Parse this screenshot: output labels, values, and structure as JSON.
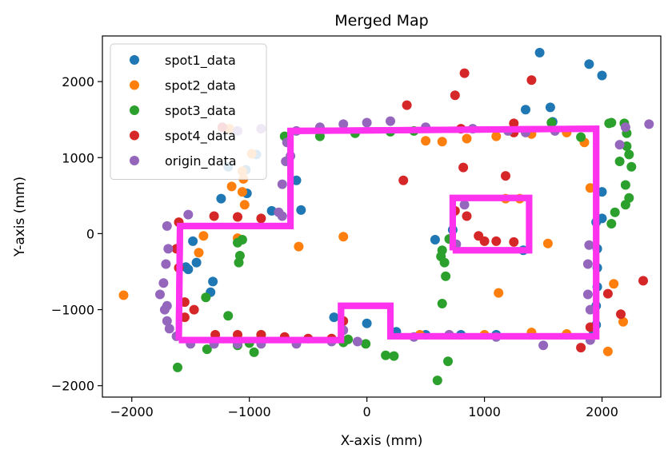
{
  "chart_data": {
    "type": "scatter",
    "title": "Merged Map",
    "xlabel": "X-axis (mm)",
    "ylabel": "Y-axis (mm)",
    "xlim": [
      -2250,
      2500
    ],
    "ylim": [
      -2150,
      2600
    ],
    "xticks": [
      -2000,
      -1000,
      0,
      1000,
      2000
    ],
    "yticks": [
      -2000,
      -1000,
      0,
      1000,
      2000
    ],
    "xtick_labels": [
      "−2000",
      "−1000",
      "0",
      "1000",
      "2000"
    ],
    "ytick_labels": [
      "−2000",
      "−1000",
      "0",
      "1000",
      "2000"
    ],
    "grid": false,
    "legend_position": "top-left",
    "series": [
      {
        "name": "spot1_data",
        "color": "#1f77b4",
        "points": [
          [
            1470,
            2380
          ],
          [
            1890,
            2230
          ],
          [
            2000,
            2080
          ],
          [
            1350,
            1630
          ],
          [
            1560,
            1660
          ],
          [
            1580,
            1470
          ],
          [
            -940,
            1040
          ],
          [
            -1180,
            880
          ],
          [
            -1030,
            840
          ],
          [
            -1020,
            530
          ],
          [
            -1240,
            460
          ],
          [
            -810,
            300
          ],
          [
            -600,
            700
          ],
          [
            -560,
            310
          ],
          [
            -1540,
            -440
          ],
          [
            -1520,
            -470
          ],
          [
            -1310,
            -630
          ],
          [
            -1330,
            -770
          ],
          [
            1950,
            150
          ],
          [
            1960,
            -200
          ],
          [
            1960,
            -450
          ],
          [
            1960,
            -700
          ],
          [
            1950,
            -950
          ],
          [
            1950,
            -1200
          ],
          [
            1930,
            -1300
          ],
          [
            -280,
            -1100
          ],
          [
            0,
            -1180
          ],
          [
            250,
            -1290
          ],
          [
            500,
            -1330
          ],
          [
            800,
            -1330
          ],
          [
            1100,
            -1330
          ],
          [
            1400,
            -1330
          ],
          [
            1700,
            -1330
          ],
          [
            580,
            -80
          ],
          [
            730,
            50
          ],
          [
            1330,
            -220
          ],
          [
            2000,
            200
          ],
          [
            2000,
            550
          ],
          [
            -1480,
            -100
          ],
          [
            -1450,
            -380
          ]
        ]
      },
      {
        "name": "spot2_data",
        "color": "#ff7f0e",
        "points": [
          [
            -2070,
            -810
          ],
          [
            -1170,
            1380
          ],
          [
            -1150,
            620
          ],
          [
            -1050,
            720
          ],
          [
            -1060,
            550
          ],
          [
            -1040,
            380
          ],
          [
            -1100,
            -60
          ],
          [
            -1390,
            -30
          ],
          [
            -1430,
            -250
          ],
          [
            -580,
            -170
          ],
          [
            -200,
            -40
          ],
          [
            1120,
            -780
          ],
          [
            1540,
            -130
          ],
          [
            2100,
            -660
          ],
          [
            2180,
            -1160
          ],
          [
            2050,
            -1550
          ],
          [
            1700,
            -1320
          ],
          [
            1400,
            -1300
          ],
          [
            1000,
            -1330
          ],
          [
            700,
            -1330
          ],
          [
            450,
            -1330
          ],
          [
            1180,
            460
          ],
          [
            1300,
            460
          ],
          [
            -1060,
            820
          ],
          [
            -980,
            1050
          ],
          [
            1850,
            1200
          ],
          [
            1900,
            600
          ],
          [
            500,
            1220
          ],
          [
            640,
            1210
          ],
          [
            850,
            1250
          ],
          [
            1100,
            1280
          ],
          [
            1400,
            1310
          ],
          [
            1700,
            1330
          ]
        ]
      },
      {
        "name": "spot3_data",
        "color": "#2ca02c",
        "points": [
          [
            -1610,
            -1760
          ],
          [
            -1370,
            -840
          ],
          [
            -1360,
            -1520
          ],
          [
            -1180,
            -1080
          ],
          [
            -1100,
            -1470
          ],
          [
            -1000,
            -1440
          ],
          [
            -900,
            -1330
          ],
          [
            -960,
            -1560
          ],
          [
            -1060,
            -80
          ],
          [
            -1100,
            -120
          ],
          [
            -1080,
            -290
          ],
          [
            -1090,
            -380
          ],
          [
            600,
            -1930
          ],
          [
            690,
            -1680
          ],
          [
            640,
            -920
          ],
          [
            670,
            -560
          ],
          [
            1570,
            1460
          ],
          [
            2060,
            1450
          ],
          [
            2080,
            1460
          ],
          [
            2190,
            1450
          ],
          [
            2210,
            1320
          ],
          [
            2210,
            1150
          ],
          [
            2230,
            1040
          ],
          [
            2150,
            950
          ],
          [
            2250,
            880
          ],
          [
            2200,
            640
          ],
          [
            2230,
            470
          ],
          [
            2200,
            380
          ],
          [
            2110,
            280
          ],
          [
            2080,
            130
          ],
          [
            1820,
            1270
          ],
          [
            -700,
            1280
          ],
          [
            -400,
            1280
          ],
          [
            -100,
            1320
          ],
          [
            200,
            1340
          ],
          [
            400,
            1350
          ],
          [
            160,
            -1600
          ],
          [
            230,
            -1610
          ],
          [
            -10,
            -1450
          ],
          [
            -200,
            -1430
          ],
          [
            640,
            -220
          ],
          [
            630,
            -300
          ],
          [
            660,
            -380
          ],
          [
            700,
            -70
          ],
          [
            -160,
            -1390
          ]
        ]
      },
      {
        "name": "spot4_data",
        "color": "#d62728",
        "points": [
          [
            -1230,
            1400
          ],
          [
            -1470,
            -1000
          ],
          [
            -1290,
            -1330
          ],
          [
            -1100,
            -1330
          ],
          [
            -900,
            -1330
          ],
          [
            -700,
            -1360
          ],
          [
            -500,
            -1380
          ],
          [
            -300,
            -1380
          ],
          [
            -200,
            -1150
          ],
          [
            -1600,
            -450
          ],
          [
            -1550,
            -900
          ],
          [
            -1550,
            -1100
          ],
          [
            -1300,
            230
          ],
          [
            -1100,
            220
          ],
          [
            -900,
            200
          ],
          [
            340,
            1690
          ],
          [
            750,
            1820
          ],
          [
            830,
            2110
          ],
          [
            1400,
            2020
          ],
          [
            310,
            700
          ],
          [
            820,
            870
          ],
          [
            1180,
            760
          ],
          [
            1250,
            1330
          ],
          [
            800,
            1380
          ],
          [
            750,
            300
          ],
          [
            850,
            230
          ],
          [
            950,
            -30
          ],
          [
            1100,
            -100
          ],
          [
            1250,
            -110
          ],
          [
            2350,
            -620
          ],
          [
            2160,
            -1060
          ],
          [
            2050,
            -790
          ],
          [
            1820,
            -1500
          ],
          [
            1900,
            -1230
          ],
          [
            -1620,
            -200
          ],
          [
            -1600,
            150
          ],
          [
            1250,
            1450
          ],
          [
            1000,
            -100
          ]
        ]
      },
      {
        "name": "origin_data",
        "color": "#9467bd",
        "points": [
          [
            -1700,
            100
          ],
          [
            -1690,
            -200
          ],
          [
            -1710,
            -400
          ],
          [
            -1730,
            -650
          ],
          [
            -1760,
            -800
          ],
          [
            -1700,
            -950
          ],
          [
            -1700,
            -1150
          ],
          [
            -1620,
            -1350
          ],
          [
            -1500,
            -1450
          ],
          [
            -1300,
            -1450
          ],
          [
            -1100,
            -1450
          ],
          [
            -900,
            -1450
          ],
          [
            -600,
            -1450
          ],
          [
            -300,
            -1420
          ],
          [
            -1520,
            250
          ],
          [
            -750,
            280
          ],
          [
            -720,
            650
          ],
          [
            -690,
            950
          ],
          [
            -680,
            1200
          ],
          [
            -600,
            1350
          ],
          [
            -400,
            1400
          ],
          [
            -200,
            1440
          ],
          [
            0,
            1460
          ],
          [
            200,
            1480
          ],
          [
            2400,
            1440
          ],
          [
            2200,
            1400
          ],
          [
            2150,
            1170
          ],
          [
            1500,
            -1470
          ],
          [
            1900,
            -1400
          ],
          [
            1880,
            -800
          ],
          [
            1880,
            -400
          ],
          [
            1890,
            -150
          ],
          [
            1900,
            -1000
          ],
          [
            1350,
            1330
          ],
          [
            830,
            380
          ],
          [
            760,
            -140
          ],
          [
            -80,
            -1420
          ],
          [
            -200,
            -1270
          ],
          [
            -720,
            230
          ],
          [
            -650,
            1020
          ],
          [
            -1680,
            -1250
          ],
          [
            -1720,
            -1000
          ],
          [
            1600,
            1350
          ],
          [
            1200,
            1350
          ],
          [
            900,
            1380
          ],
          [
            500,
            1400
          ],
          [
            -900,
            1380
          ],
          [
            -1100,
            1350
          ],
          [
            700,
            -1330
          ],
          [
            400,
            -1360
          ],
          [
            1100,
            -1360
          ]
        ]
      },
      {
        "name": "",
        "color": "#ff33ee",
        "kind": "polyline",
        "points": [
          [
            -1600,
            -1400
          ],
          [
            -1590,
            100
          ],
          [
            -650,
            100
          ],
          [
            -650,
            1350
          ],
          [
            1950,
            1380
          ],
          [
            1950,
            -1350
          ],
          [
            200,
            -1350
          ],
          [
            200,
            -950
          ],
          [
            -220,
            -950
          ],
          [
            -220,
            -1400
          ],
          [
            -1600,
            -1400
          ]
        ]
      },
      {
        "name": "",
        "color": "#ff33ee",
        "kind": "polyline",
        "points": [
          [
            730,
            -220
          ],
          [
            730,
            470
          ],
          [
            1380,
            470
          ],
          [
            1380,
            -220
          ],
          [
            730,
            -220
          ]
        ]
      }
    ]
  }
}
